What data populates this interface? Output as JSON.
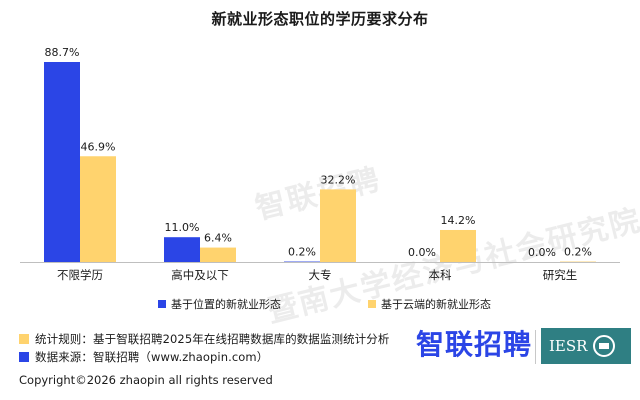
{
  "colors": {
    "series_a": "#2b45e6",
    "series_b": "#ffd36e",
    "axis": "#bfbfbf",
    "iesr_bg": "#2f7f83"
  },
  "chart_data": {
    "type": "bar",
    "title": "新就业形态职位的学历要求分布",
    "categories": [
      "不限学历",
      "高中及以下",
      "大专",
      "本科",
      "研究生"
    ],
    "series": [
      {
        "name": "基于位置的新就业形态",
        "values": [
          88.7,
          11.0,
          0.2,
          0.0,
          0.0
        ],
        "labels": [
          "88.7%",
          "11.0%",
          "0.2%",
          "0.0%",
          "0.0%"
        ]
      },
      {
        "name": "基于云端的新就业形态",
        "values": [
          46.9,
          6.4,
          32.2,
          14.2,
          0.2
        ],
        "labels": [
          "46.9%",
          "6.4%",
          "32.2%",
          "14.2%",
          "0.2%"
        ]
      }
    ],
    "ylim": [
      0,
      88.7
    ],
    "grid": false,
    "legend": "bottom"
  },
  "watermark": {
    "line1": "智联招聘",
    "line2": "暨南大学经济与社会研究院"
  },
  "footer": {
    "stats_rule": "统计规则：基于智联招聘2025年在线招聘数据库的数据监测统计分析",
    "data_source": "数据来源：智联招聘（www.zhaopin.com）",
    "copyright": "Copyright©2026 zhaopin all rights reserved"
  },
  "logos": {
    "brand": "智联招聘",
    "institute": "IESR"
  }
}
